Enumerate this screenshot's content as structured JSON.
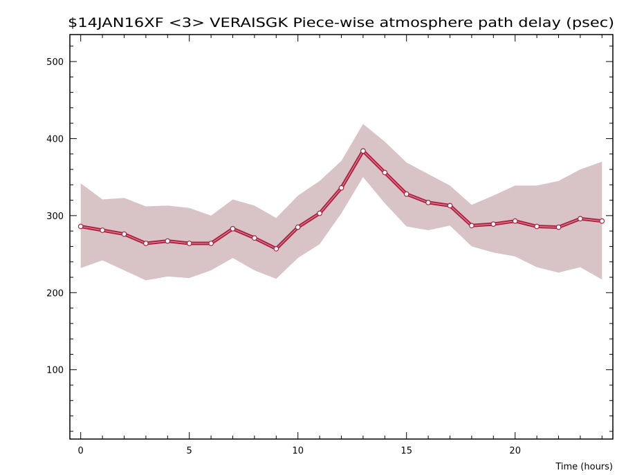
{
  "chart_data": {
    "type": "line",
    "title": "$14JAN16XF <3>  VERAISGK  Piece-wise atmosphere path delay (psec)",
    "xlabel": "Time (hours)",
    "ylabel": "",
    "xlim": [
      -0.5,
      24.5
    ],
    "ylim": [
      10,
      535
    ],
    "x_ticks": [
      0,
      5,
      10,
      15,
      20
    ],
    "x_tick_labels": [
      "0",
      "5",
      "10",
      "15",
      "20"
    ],
    "y_ticks": [
      100,
      200,
      300,
      400,
      500
    ],
    "y_tick_labels": [
      "100",
      "200",
      "300",
      "400",
      "500"
    ],
    "x_minor_step": 1,
    "y_minor_step": 20,
    "grid": false,
    "legend": "none",
    "series": [
      {
        "x": [
          0,
          1,
          2,
          3,
          4,
          5,
          6,
          7,
          8,
          9,
          10,
          11,
          12,
          13,
          14,
          15,
          16,
          17,
          18,
          19,
          20,
          21,
          22,
          23,
          24
        ],
        "values": [
          286,
          281,
          276,
          264,
          267,
          264,
          264,
          283,
          271,
          257,
          285,
          303,
          336,
          384,
          356,
          328,
          317,
          313,
          287,
          289,
          293,
          286,
          285,
          296,
          293
        ],
        "upper": [
          342,
          321,
          323,
          312,
          313,
          310,
          300,
          321,
          313,
          297,
          326,
          345,
          371,
          419,
          396,
          369,
          354,
          339,
          314,
          326,
          339,
          339,
          345,
          360,
          370
        ],
        "lower": [
          232,
          242,
          229,
          216,
          221,
          219,
          229,
          245,
          229,
          218,
          245,
          263,
          303,
          350,
          316,
          286,
          281,
          287,
          260,
          252,
          247,
          233,
          226,
          233,
          217
        ]
      }
    ],
    "colors": {
      "line": "#b0203f",
      "band": "#d8c3c7",
      "marker_fill": "#ffffff",
      "axis": "#000000"
    }
  }
}
